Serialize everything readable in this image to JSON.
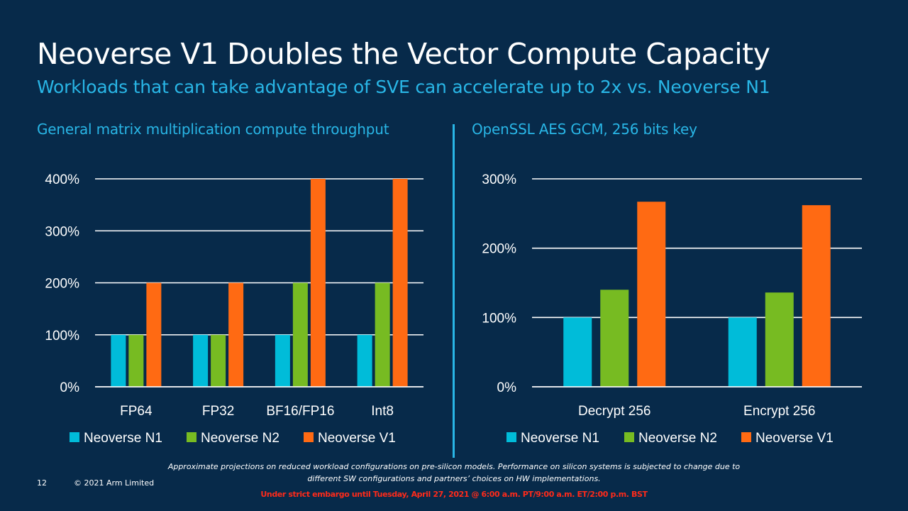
{
  "slide": {
    "title": "Neoverse V1 Doubles the Vector Compute Capacity",
    "subtitle": "Workloads that can take advantage of SVE can accelerate up to 2x vs. Neoverse N1",
    "footnote_line1": "Approximate projections on reduced workload configurations on pre-silicon models. Performance on silicon systems is subjected to change due to",
    "footnote_line2": "different SW configurations and partners’ choices on HW implementations.",
    "page_number": "12",
    "copyright": "© 2021 Arm Limited",
    "embargo": "Under strict embargo until Tuesday, April 27, 2021 @ 6:00 a.m. PT/9:00 a.m. ET/2:00 p.m. BST"
  },
  "chart_data": [
    {
      "type": "bar",
      "title": "General matrix multiplication compute throughput",
      "categories": [
        "FP64",
        "FP32",
        "BF16/FP16",
        "Int8"
      ],
      "series": [
        {
          "name": "Neoverse N1",
          "color": "#00bcd9",
          "values": [
            100,
            100,
            100,
            100
          ]
        },
        {
          "name": "Neoverse N2",
          "color": "#77bb22",
          "values": [
            100,
            100,
            200,
            200
          ]
        },
        {
          "name": "Neoverse V1",
          "color": "#ff6a13",
          "values": [
            200,
            200,
            400,
            400
          ]
        }
      ],
      "yticks": [
        "0%",
        "100%",
        "200%",
        "300%",
        "400%"
      ],
      "ylim": [
        0,
        400
      ],
      "grid": true,
      "legend": "bottom"
    },
    {
      "type": "bar",
      "title": "OpenSSL AES GCM, 256 bits key",
      "categories": [
        "Decrypt 256",
        "Encrypt 256"
      ],
      "series": [
        {
          "name": "Neoverse N1",
          "color": "#00bcd9",
          "values": [
            100,
            100
          ]
        },
        {
          "name": "Neoverse N2",
          "color": "#77bb22",
          "values": [
            140,
            136
          ]
        },
        {
          "name": "Neoverse V1",
          "color": "#ff6a13",
          "values": [
            267,
            262
          ]
        }
      ],
      "yticks": [
        "0%",
        "100%",
        "200%",
        "300%"
      ],
      "ylim": [
        0,
        300
      ],
      "grid": true,
      "legend": "bottom"
    }
  ]
}
